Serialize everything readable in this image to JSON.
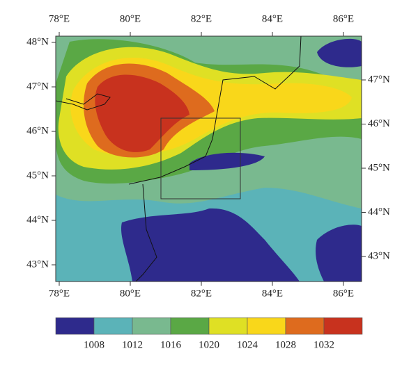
{
  "map": {
    "bottom_ticks": [
      {
        "value": 78,
        "label": "78°E"
      },
      {
        "value": 80,
        "label": "80°E"
      },
      {
        "value": 82,
        "label": "82°E"
      },
      {
        "value": 84,
        "label": "84°E"
      },
      {
        "value": 86,
        "label": "86°E"
      }
    ],
    "top_ticks": [
      {
        "value": 78,
        "label": "78°E"
      },
      {
        "value": 80,
        "label": "80°E"
      },
      {
        "value": 82,
        "label": "82°E"
      },
      {
        "value": 84,
        "label": "84°E"
      },
      {
        "value": 86,
        "label": "86°E"
      }
    ],
    "left_ticks": [
      {
        "value": 48,
        "label": "48°N"
      },
      {
        "value": 47,
        "label": "47°N"
      },
      {
        "value": 46,
        "label": "46°N"
      },
      {
        "value": 45,
        "label": "45°N"
      },
      {
        "value": 44,
        "label": "44°N"
      },
      {
        "value": 43,
        "label": "43°N"
      }
    ],
    "right_ticks": [
      {
        "value": 47,
        "label": "47°N"
      },
      {
        "value": 46,
        "label": "46°N"
      },
      {
        "value": 45,
        "label": "45°N"
      },
      {
        "value": 44,
        "label": "44°N"
      },
      {
        "value": 43,
        "label": "43°N"
      }
    ],
    "colorbar": {
      "levels": [
        1008,
        1012,
        1016,
        1020,
        1024,
        1028,
        1032
      ],
      "colors": [
        "#2e2a8c",
        "#5bb3b8",
        "#79b98f",
        "#5aa845",
        "#dfe024",
        "#f9d71a",
        "#de6b1e",
        "#c8321e"
      ]
    }
  }
}
